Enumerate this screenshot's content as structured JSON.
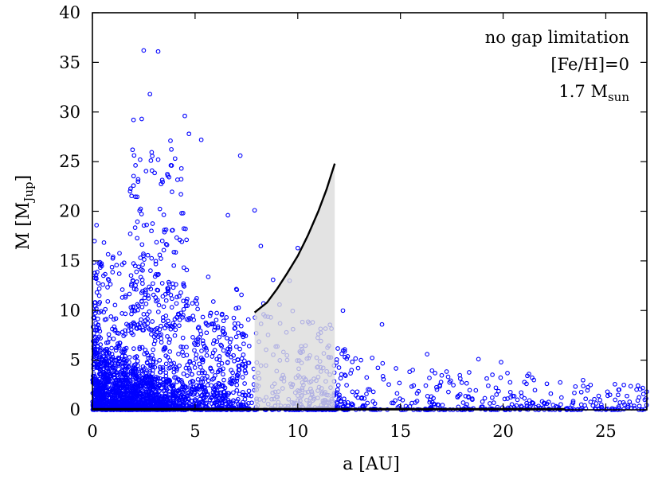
{
  "chart_data": {
    "type": "scatter",
    "xlabel": "a [AU]",
    "ylabel": {
      "base": "M [M",
      "sub": "Jup",
      "close": "]"
    },
    "xlim": [
      0,
      27
    ],
    "ylim": [
      0,
      40
    ],
    "x_ticks": [
      0,
      5,
      10,
      15,
      20,
      25
    ],
    "y_ticks": [
      0,
      5,
      10,
      15,
      20,
      25,
      30,
      35,
      40
    ],
    "grid": false,
    "annotations": {
      "line1": "no gap limitation",
      "line2": "[Fe/H]=0",
      "line3": {
        "base": "1.7 M",
        "sub": "sun"
      }
    },
    "series": [
      {
        "marker": "open-circle",
        "color": "#0000ff",
        "approximate_count": 3000,
        "notable_points": [
          [
            2.5,
            36.2
          ],
          [
            3.2,
            36.1
          ],
          [
            2.8,
            31.8
          ],
          [
            2.0,
            29.2
          ],
          [
            2.4,
            29.3
          ],
          [
            4.5,
            29.6
          ],
          [
            3.8,
            27.1
          ],
          [
            4.7,
            27.8
          ],
          [
            5.3,
            27.2
          ],
          [
            7.2,
            25.6
          ],
          [
            2.9,
            24.1
          ],
          [
            3.2,
            25.2
          ],
          [
            7.9,
            20.1
          ],
          [
            8.2,
            16.5
          ],
          [
            10.0,
            16.3
          ],
          [
            8.8,
            13.1
          ],
          [
            9.6,
            13.0
          ],
          [
            12.2,
            10.0
          ],
          [
            14.1,
            8.6
          ],
          [
            16.3,
            5.6
          ],
          [
            18.8,
            5.1
          ],
          [
            19.9,
            4.8
          ],
          [
            21.5,
            3.0
          ],
          [
            23.9,
            2.4
          ],
          [
            25.6,
            1.5
          ],
          [
            26.9,
            1.0
          ],
          [
            0.1,
            17.0
          ],
          [
            0.2,
            18.6
          ],
          [
            0.4,
            14.6
          ],
          [
            6.6,
            19.6
          ]
        ]
      }
    ],
    "shaded_region": {
      "color": "#dcdcdc",
      "x": [
        7.9,
        8.5,
        9.0,
        9.5,
        10.0,
        10.5,
        11.0,
        11.4,
        11.8
      ],
      "y_lower": 0,
      "y_upper": [
        9.8,
        10.8,
        12.2,
        13.8,
        15.5,
        17.6,
        20.0,
        22.2,
        24.8
      ]
    },
    "boundary_line": {
      "color": "#000000",
      "x": [
        7.9,
        8.5,
        9.0,
        9.5,
        10.0,
        10.5,
        11.0,
        11.4,
        11.8
      ],
      "y": [
        9.8,
        10.8,
        12.2,
        13.8,
        15.5,
        17.6,
        20.0,
        22.2,
        24.8
      ]
    },
    "inner_edge_line": {
      "color": "#000000",
      "x": [
        0,
        23.0
      ],
      "y": [
        0,
        0
      ]
    }
  }
}
